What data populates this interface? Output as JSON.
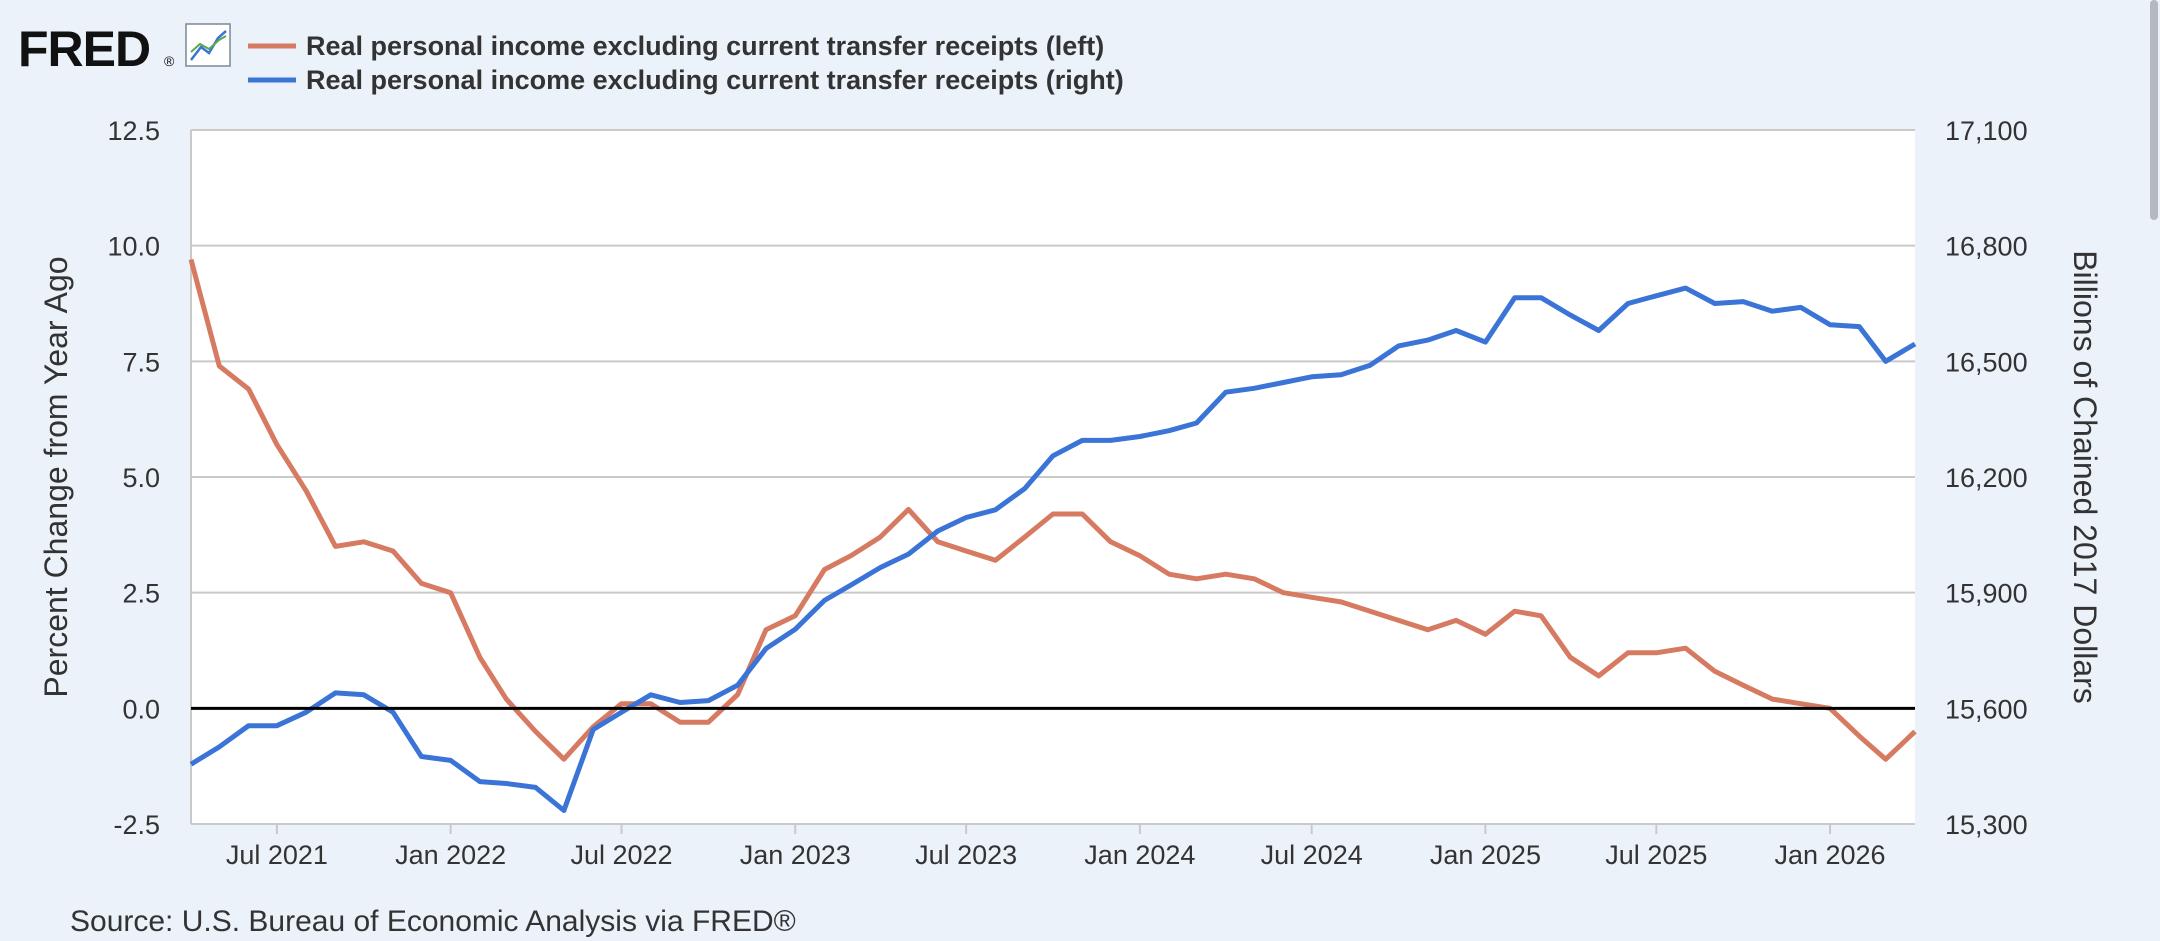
{
  "logo": {
    "text": "FRED",
    "registered_mark": "®",
    "icon": "line-chart-icon"
  },
  "colors": {
    "left_series": "#d67a62",
    "right_series": "#3a74d6",
    "background": "#ebf2fa",
    "plot": "#ffffff",
    "grid": "#c9c9c9",
    "zero_line": "#000000"
  },
  "source": "Source: U.S. Bureau of Economic Analysis via FRED®",
  "chart_data": {
    "type": "line",
    "legend_position": "top-left",
    "grid": true,
    "x_range": [
      "2021-04-01",
      "2026-04-01"
    ],
    "x_tick_labels": [
      {
        "label": "Jul 2021",
        "date": "2021-07-01"
      },
      {
        "label": "Jan 2022",
        "date": "2022-01-01"
      },
      {
        "label": "Jul 2022",
        "date": "2022-07-01"
      },
      {
        "label": "Jan 2023",
        "date": "2023-01-01"
      },
      {
        "label": "Jul 2023",
        "date": "2023-07-01"
      },
      {
        "label": "Jan 2024",
        "date": "2024-01-01"
      },
      {
        "label": "Jul 2024",
        "date": "2024-07-01"
      },
      {
        "label": "Jan 2025",
        "date": "2025-01-01"
      },
      {
        "label": "Jul 2025",
        "date": "2025-07-01"
      },
      {
        "label": "Jan 2026",
        "date": "2026-01-01"
      }
    ],
    "y_left": {
      "label": "Percent Change from Year Ago",
      "range": [
        -2.5,
        12.5
      ],
      "ticks": [
        12.5,
        10.0,
        7.5,
        5.0,
        2.5,
        0.0,
        -2.5
      ],
      "tick_labels": [
        "12.5",
        "10.0",
        "7.5",
        "5.0",
        "2.5",
        "0.0",
        "-2.5"
      ]
    },
    "y_right": {
      "label": "Billions of Chained 2017 Dollars",
      "range": [
        15300,
        17100
      ],
      "ticks": [
        17100,
        16800,
        16500,
        16200,
        15900,
        15600,
        15300
      ],
      "tick_labels": [
        "17,100",
        "16,800",
        "16,500",
        "16,200",
        "15,900",
        "15,600",
        "15,300"
      ]
    },
    "series": [
      {
        "name": "Real personal income excluding current transfer receipts (left)",
        "axis": "left",
        "x": [
          "2021-04-01",
          "2021-05-01",
          "2021-06-01",
          "2021-07-01",
          "2021-08-01",
          "2021-09-01",
          "2021-10-01",
          "2021-11-01",
          "2021-12-01",
          "2022-01-01",
          "2022-02-01",
          "2022-03-01",
          "2022-04-01",
          "2022-05-01",
          "2022-06-01",
          "2022-07-01",
          "2022-08-01",
          "2022-09-01",
          "2022-10-01",
          "2022-11-01",
          "2022-12-01",
          "2023-01-01",
          "2023-02-01",
          "2023-03-01",
          "2023-04-01",
          "2023-05-01",
          "2023-06-01",
          "2023-07-01",
          "2023-08-01",
          "2023-09-01",
          "2023-10-01",
          "2023-11-01",
          "2023-12-01",
          "2024-01-01",
          "2024-02-01",
          "2024-03-01",
          "2024-04-01",
          "2024-05-01",
          "2024-06-01",
          "2024-07-01",
          "2024-08-01",
          "2024-09-01",
          "2024-10-01",
          "2024-11-01",
          "2024-12-01",
          "2025-01-01",
          "2025-02-01",
          "2025-03-01",
          "2025-04-01",
          "2025-05-01",
          "2025-06-01",
          "2025-07-01",
          "2025-08-01",
          "2025-09-01",
          "2025-10-01",
          "2025-11-01",
          "2025-12-01",
          "2026-01-01",
          "2026-02-01",
          "2026-03-01",
          "2026-04-01"
        ],
        "y": [
          9.7,
          7.4,
          6.9,
          5.7,
          4.7,
          3.5,
          3.6,
          3.4,
          2.7,
          2.5,
          1.1,
          0.2,
          -0.5,
          -1.1,
          -0.4,
          0.1,
          0.1,
          -0.3,
          -0.3,
          0.3,
          1.7,
          2.0,
          3.0,
          3.3,
          3.7,
          4.3,
          3.6,
          3.4,
          3.2,
          3.7,
          4.2,
          4.2,
          3.6,
          3.3,
          2.9,
          2.8,
          2.9,
          2.8,
          2.5,
          2.4,
          2.3,
          2.1,
          1.9,
          1.7,
          1.9,
          1.6,
          2.1,
          2.0,
          1.1,
          0.7,
          1.2,
          1.2,
          1.3,
          0.8,
          0.5,
          0.2,
          0.1,
          0.0,
          -0.6,
          -1.1,
          -0.5
        ]
      },
      {
        "name": "Real personal income excluding current transfer receipts (right)",
        "axis": "right",
        "x": [
          "2021-04-01",
          "2021-05-01",
          "2021-06-01",
          "2021-07-01",
          "2021-08-01",
          "2021-09-01",
          "2021-10-01",
          "2021-11-01",
          "2021-12-01",
          "2022-01-01",
          "2022-02-01",
          "2022-03-01",
          "2022-04-01",
          "2022-05-01",
          "2022-06-01",
          "2022-07-01",
          "2022-08-01",
          "2022-09-01",
          "2022-10-01",
          "2022-11-01",
          "2022-12-01",
          "2023-01-01",
          "2023-02-01",
          "2023-03-01",
          "2023-04-01",
          "2023-05-01",
          "2023-06-01",
          "2023-07-01",
          "2023-08-01",
          "2023-09-01",
          "2023-10-01",
          "2023-11-01",
          "2023-12-01",
          "2024-01-01",
          "2024-02-01",
          "2024-03-01",
          "2024-04-01",
          "2024-05-01",
          "2024-06-01",
          "2024-07-01",
          "2024-08-01",
          "2024-09-01",
          "2024-10-01",
          "2024-11-01",
          "2024-12-01",
          "2025-01-01",
          "2025-02-01",
          "2025-03-01",
          "2025-04-01",
          "2025-05-01",
          "2025-06-01",
          "2025-07-01",
          "2025-08-01",
          "2025-09-01",
          "2025-10-01",
          "2025-11-01",
          "2025-12-01",
          "2026-01-01",
          "2026-02-01",
          "2026-03-01",
          "2026-04-01"
        ],
        "y": [
          15455,
          15500,
          15555,
          15555,
          15590,
          15640,
          15635,
          15590,
          15475,
          15465,
          15410,
          15405,
          15395,
          15335,
          15545,
          15590,
          15635,
          15615,
          15620,
          15660,
          15755,
          15805,
          15880,
          15920,
          15965,
          16000,
          16060,
          16095,
          16115,
          16170,
          16255,
          16295,
          16295,
          16305,
          16320,
          16340,
          16420,
          16430,
          16445,
          16460,
          16465,
          16490,
          16540,
          16555,
          16580,
          16550,
          16665,
          16665,
          16620,
          16580,
          16650,
          16670,
          16690,
          16650,
          16655,
          16630,
          16640,
          16595,
          16590,
          16500,
          16545
        ]
      }
    ]
  }
}
